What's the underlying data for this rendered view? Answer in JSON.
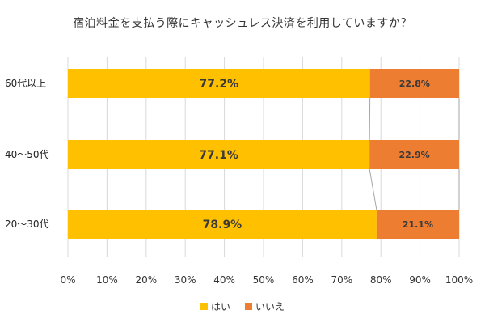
{
  "chart_data": {
    "type": "bar",
    "orientation": "horizontal",
    "stacked": "percent",
    "title": "宿泊料金を支払う際にキャッシュレス決済を利用していますか？",
    "categories": [
      "60代以上",
      "40～50代",
      "20～30代"
    ],
    "series": [
      {
        "name": "はい",
        "color": "#FFC000",
        "values": [
          77.2,
          77.1,
          78.9
        ],
        "labels": [
          "77.2%",
          "77.1%",
          "78.9%"
        ]
      },
      {
        "name": "いいえ",
        "color": "#ED7D31",
        "values": [
          22.8,
          22.9,
          21.1
        ],
        "labels": [
          "22.8%",
          "22.9%",
          "21.1%"
        ]
      }
    ],
    "xlim": [
      0,
      100
    ],
    "xticks": [
      "0%",
      "10%",
      "20%",
      "30%",
      "40%",
      "50%",
      "60%",
      "70%",
      "80%",
      "90%",
      "100%"
    ],
    "grid": "vertical",
    "legend_position": "bottom-center"
  }
}
